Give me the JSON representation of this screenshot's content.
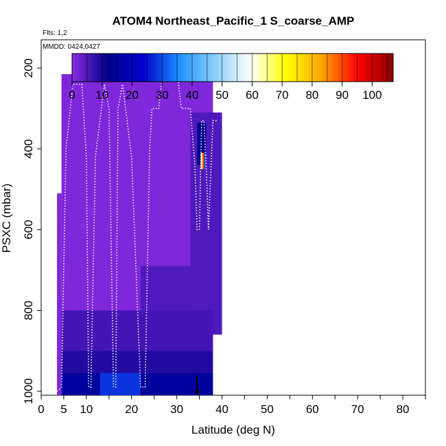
{
  "chart_data": {
    "type": "heatmap",
    "title": "ATOM4 Northeast_Pacific_1 S_coarse_AMP",
    "annotations": {
      "flights": "Flts: 1,2",
      "dates": "MMDD: 0424,0427"
    },
    "xlabel": "Latitude (deg N)",
    "ylabel": "PSXC (mbar)",
    "xlim": [
      0,
      85
    ],
    "ylim": [
      1010,
      130
    ],
    "x_ticks": [
      0,
      5,
      10,
      20,
      30,
      40,
      50,
      60,
      70,
      80
    ],
    "y_ticks": [
      200,
      400,
      600,
      800,
      1000
    ],
    "colorbar": {
      "ticks": [
        0,
        10,
        20,
        30,
        40,
        50,
        60,
        70,
        80,
        90,
        100
      ],
      "range": [
        0,
        107
      ],
      "colors": [
        "#8a2be2",
        "#00008b",
        "#0000cd",
        "#1e90ff",
        "#87cefa",
        "#ffffff",
        "#ffff00",
        "#ffa500",
        "#ff0000",
        "#8b0000"
      ]
    },
    "grid": false,
    "cells": [
      {
        "lat": [
          4.5,
          38
        ],
        "p": [
          215,
          1010
        ],
        "value": 1
      },
      {
        "lat": [
          27,
          32
        ],
        "p": [
          165,
          215
        ],
        "value": 1
      },
      {
        "lat": [
          29,
          35
        ],
        "p": [
          215,
          250
        ],
        "value": 1
      },
      {
        "lat": [
          32,
          37
        ],
        "p": [
          250,
          310
        ],
        "value": 1
      },
      {
        "lat": [
          33,
          40
        ],
        "p": [
          310,
          860
        ],
        "value": 5
      },
      {
        "lat": [
          3.5,
          4.5
        ],
        "p": [
          510,
          1010
        ],
        "value": 1
      },
      {
        "lat": [
          4.5,
          38
        ],
        "p": [
          800,
          900
        ],
        "value": 6
      },
      {
        "lat": [
          4.5,
          38
        ],
        "p": [
          900,
          955
        ],
        "value": 9
      },
      {
        "lat": [
          4.5,
          38
        ],
        "p": [
          955,
          1010
        ],
        "value": 15
      },
      {
        "lat": [
          13,
          22
        ],
        "p": [
          955,
          1010
        ],
        "value": 28
      },
      {
        "lat": [
          22,
          38
        ],
        "p": [
          690,
          800
        ],
        "value": 5
      },
      {
        "lat": [
          34.5,
          36.5
        ],
        "p": [
          335,
          440
        ],
        "value": 12
      },
      {
        "lat": [
          35.3,
          35.7
        ],
        "p": [
          410,
          450
        ],
        "value": 65
      },
      {
        "lat": [
          35.7,
          36.1
        ],
        "p": [
          410,
          450
        ],
        "value": 90
      },
      {
        "lat": [
          36.1,
          36.5
        ],
        "p": [
          410,
          450
        ],
        "value": 30
      }
    ],
    "series": [
      {
        "x": [
          3.5,
          4.5,
          5.5,
          7,
          9,
          10,
          10.5,
          11,
          12,
          14,
          15,
          16,
          16.5,
          17,
          18,
          20,
          22,
          23,
          24,
          24.5,
          25,
          26,
          27,
          28,
          29,
          30,
          31,
          32,
          33,
          34,
          34.5,
          35,
          35.5,
          36,
          36.5,
          37,
          38,
          39
        ],
        "y": [
          1000,
          990,
          400,
          240,
          240,
          420,
          990,
          990,
          420,
          240,
          300,
          990,
          990,
          300,
          240,
          420,
          990,
          990,
          400,
          300,
          300,
          300,
          200,
          200,
          200,
          200,
          300,
          300,
          300,
          440,
          600,
          600,
          330,
          330,
          440,
          600,
          330,
          330
        ]
      }
    ],
    "arrow": {
      "lat": 34.5,
      "p": [
        960,
        1010
      ]
    }
  }
}
